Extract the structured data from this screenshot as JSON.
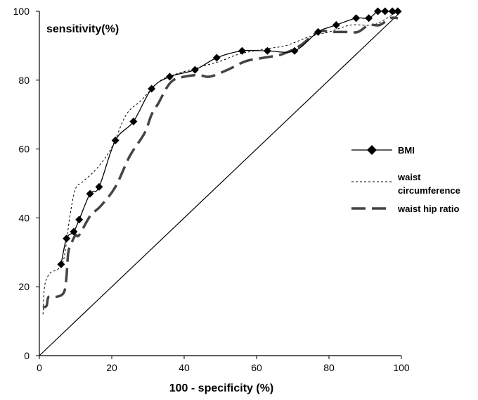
{
  "chart_data": {
    "type": "line",
    "title": "",
    "xlabel": "100 - specificity (%)",
    "ylabel": "sensitivity(%)",
    "xlim": [
      0,
      100
    ],
    "ylim": [
      0,
      100
    ],
    "xticks": [
      0,
      20,
      40,
      60,
      80,
      100
    ],
    "yticks": [
      0,
      20,
      40,
      60,
      80,
      100
    ],
    "grid": false,
    "legend_position": "right",
    "series": [
      {
        "name": "BMI",
        "style": "solid-diamond",
        "color": "#000000",
        "x": [
          6,
          7.5,
          9.5,
          11,
          14,
          16.5,
          21,
          26,
          31,
          36,
          43,
          49,
          56,
          63,
          70.5,
          77,
          82,
          87.5,
          91,
          93.5,
          95.5,
          97.5,
          99
        ],
        "y": [
          26.5,
          34,
          36,
          39.5,
          47,
          49,
          62.5,
          68,
          77.5,
          81,
          83,
          86.5,
          88.5,
          88.5,
          88.5,
          94,
          96,
          98,
          98,
          100,
          100,
          100,
          100
        ]
      },
      {
        "name": "waist circumference",
        "style": "dotted",
        "color": "#000000",
        "x": [
          1,
          1.5,
          3,
          5,
          6.5,
          7.5,
          8.5,
          10,
          12,
          16,
          20,
          24,
          28,
          33,
          37,
          45,
          50,
          55,
          62,
          68,
          73,
          76,
          80,
          86,
          92,
          96,
          99
        ],
        "y": [
          12,
          20.5,
          24,
          25,
          27,
          33,
          41,
          48.5,
          50.5,
          54.5,
          60.5,
          70,
          74,
          79.5,
          81.5,
          84,
          85.5,
          87.5,
          89,
          90,
          92,
          93,
          94,
          96,
          96,
          98,
          100
        ]
      },
      {
        "name": "waist hip ratio",
        "style": "long-dash",
        "color": "#444444",
        "x": [
          1,
          2,
          2.5,
          4,
          6,
          7,
          7.5,
          8,
          9,
          10,
          11,
          14,
          17,
          21,
          25,
          29,
          31,
          33,
          35,
          37,
          40,
          44,
          47,
          52,
          57,
          62,
          67,
          72,
          77,
          81,
          85,
          88,
          91,
          94,
          97,
          99
        ],
        "y": [
          14,
          14.5,
          17,
          17,
          17.5,
          19,
          23,
          30,
          33,
          35,
          35,
          40.5,
          43.5,
          49,
          58,
          64.5,
          70,
          73.5,
          77.5,
          80,
          81,
          81.5,
          81,
          83,
          85.5,
          86.5,
          87.5,
          90,
          94,
          94,
          94,
          94,
          96,
          96,
          98,
          98
        ]
      },
      {
        "name": "",
        "style": "reference-diagonal",
        "color": "#000000",
        "x": [
          0,
          100
        ],
        "y": [
          0,
          100
        ]
      }
    ]
  }
}
